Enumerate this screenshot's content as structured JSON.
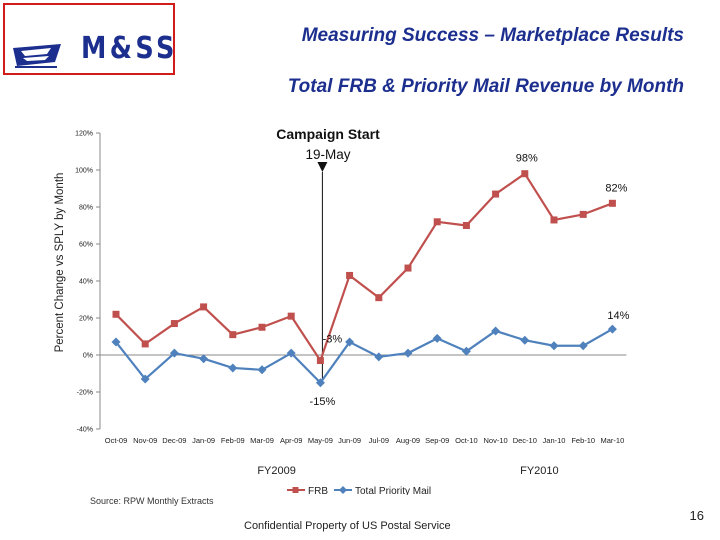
{
  "header": {
    "brand": "M&SS",
    "title": "Measuring Success – Marketplace Results",
    "subtitle": "Total FRB & Priority Mail Revenue by Month"
  },
  "footer": {
    "source": "Source: RPW Monthly Extracts",
    "confidential": "Confidential Property of US Postal Service",
    "page_number": "16"
  },
  "colors": {
    "frb": "#c0504d",
    "tpm": "#4f81bd",
    "brand": "#1c2f8f",
    "logo_border": "#d11c1c"
  },
  "chart_data": {
    "type": "line",
    "title": "",
    "xlabel": "",
    "ylabel": "Percent Change vs SPLY by Month",
    "ylim": [
      -40,
      120
    ],
    "ytick_labels": [
      "120%",
      "100%",
      "80%",
      "60%",
      "40%",
      "20%",
      "0%",
      "-20%",
      "-40%"
    ],
    "ytick_values": [
      120,
      100,
      80,
      60,
      40,
      20,
      0,
      -20,
      -40
    ],
    "categories": [
      "Oct-09",
      "Nov-09",
      "Dec-09",
      "Jan-09",
      "Feb-09",
      "Mar-09",
      "Apr-09",
      "May-09",
      "Jun-09",
      "Jul-09",
      "Aug-09",
      "Sep-09",
      "Oct-10",
      "Nov-10",
      "Dec-10",
      "Jan-10",
      "Feb-10",
      "Mar-10"
    ],
    "grid": false,
    "legend_position": "bottom",
    "series": [
      {
        "name": "FRB",
        "color": "#c0504d",
        "marker": "square",
        "values": [
          22,
          6,
          17,
          26,
          11,
          15,
          21,
          -3,
          43,
          31,
          47,
          72,
          70,
          87,
          98,
          73,
          76,
          82
        ]
      },
      {
        "name": "Total Priority Mail",
        "color": "#4f81bd",
        "marker": "diamond",
        "values": [
          7,
          -13,
          1,
          -2,
          -7,
          -8,
          1,
          -15,
          7,
          -1,
          1,
          9,
          2,
          13,
          8,
          5,
          5,
          14
        ]
      }
    ],
    "annotations": {
      "campaign_line1": "Campaign Start",
      "campaign_line2": "19-May",
      "campaign_category": "May-09",
      "data_labels": [
        {
          "text": "98%",
          "series": 0,
          "index": 14
        },
        {
          "text": "82%",
          "series": 0,
          "index": 17
        },
        {
          "text": "14%",
          "series": 1,
          "index": 17
        },
        {
          "text": "-3%",
          "series": 0,
          "index": 7
        },
        {
          "text": "-15%",
          "series": 1,
          "index": 7
        }
      ]
    },
    "fiscal_years": [
      {
        "label": "FY2009",
        "from": "Oct-09",
        "to": "Sep-09"
      },
      {
        "label": "FY2010",
        "from": "Oct-10",
        "to": "Mar-10"
      }
    ]
  }
}
